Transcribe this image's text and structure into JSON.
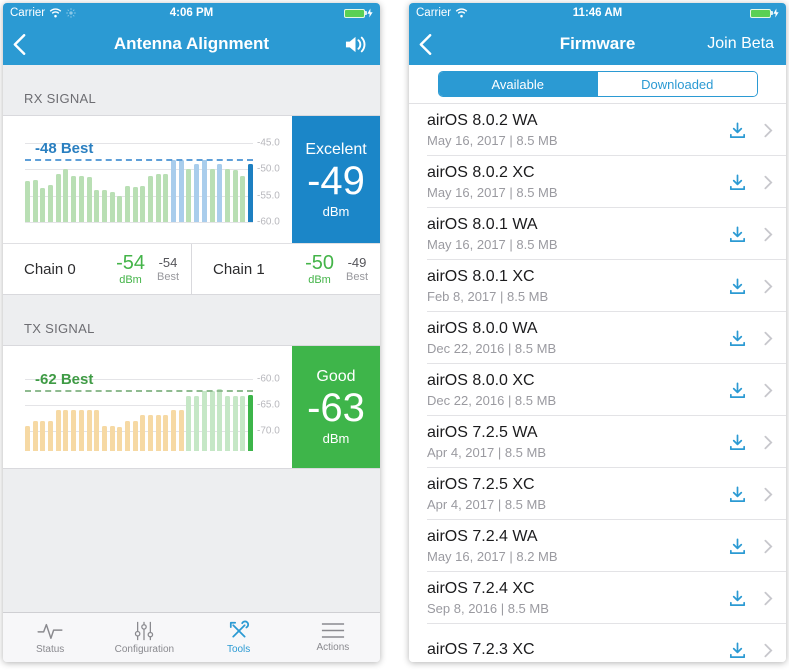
{
  "colors": {
    "app_blue": "#2b9ad3",
    "rx_box_blue": "#1b86c8",
    "tx_box_green": "#3eb54a",
    "chain_value_green": "#44b449"
  },
  "chart_data": [
    {
      "type": "bar",
      "title": "RX SIGNAL",
      "ylabel": "dBm",
      "ylim": [
        -60,
        -44.5
      ],
      "grid": true,
      "y_ticks": [
        {
          "value": -45,
          "label": "-45.0"
        },
        {
          "value": -50,
          "label": "-50.0"
        },
        {
          "value": -55,
          "label": "-55.0"
        },
        {
          "value": -60,
          "label": "-60.0"
        }
      ],
      "best_line": {
        "value": -48,
        "label": "-48 Best",
        "line_color": "#5e9fd8",
        "label_color": "#2a7fc0"
      },
      "current": {
        "quality": "Excelent",
        "value": -49,
        "unit": "dBm"
      },
      "palette": {
        "g": "#b9dfb4",
        "b": "#a9cdec",
        "c": "#1d7fc1"
      },
      "values": [
        -52.3,
        -52.0,
        -53.5,
        -53.0,
        -51.0,
        -50.0,
        -51.3,
        -51.3,
        -51.4,
        -54.0,
        -54.0,
        -54.3,
        -55.0,
        -53.2,
        -53.3,
        -53.2,
        -51.3,
        -51.0,
        -51.0,
        -48.2,
        -48.2,
        -50.0,
        -49.0,
        -48.2,
        -50.0,
        -49.0,
        -50.0,
        -50.2,
        -51.3,
        -49.0
      ],
      "bar_colors": [
        "g",
        "g",
        "g",
        "g",
        "g",
        "g",
        "g",
        "g",
        "g",
        "g",
        "g",
        "g",
        "g",
        "g",
        "g",
        "g",
        "g",
        "g",
        "g",
        "b",
        "b",
        "g",
        "b",
        "b",
        "g",
        "b",
        "g",
        "g",
        "g",
        "c"
      ]
    },
    {
      "type": "bar",
      "title": "TX SIGNAL",
      "ylabel": "dBm",
      "ylim": [
        -73.8,
        -58.5
      ],
      "grid": true,
      "y_ticks": [
        {
          "value": -60,
          "label": "-60.0"
        },
        {
          "value": -65,
          "label": "-65.0"
        },
        {
          "value": -70,
          "label": "-70.0"
        }
      ],
      "best_line": {
        "value": -62.2,
        "label": "-62 Best",
        "line_color": "#8fbb90",
        "label_color": "#3f9b45"
      },
      "current": {
        "quality": "Good",
        "value": -63,
        "unit": "dBm"
      },
      "palette": {
        "o": "#f6d9a4",
        "g": "#c5e7c6",
        "c": "#3cb549"
      },
      "values": [
        -69.0,
        -68.0,
        -68.0,
        -68.0,
        -66.0,
        -66.0,
        -66.0,
        -66.0,
        -66.0,
        -66.0,
        -69.0,
        -69.0,
        -69.2,
        -68.0,
        -68.0,
        -67.0,
        -67.0,
        -67.0,
        -67.0,
        -66.0,
        -66.0,
        -63.3,
        -63.3,
        -62.3,
        -62.3,
        -62.0,
        -63.3,
        -63.3,
        -63.3,
        -63.0
      ],
      "bar_colors": [
        "o",
        "o",
        "o",
        "o",
        "o",
        "o",
        "o",
        "o",
        "o",
        "o",
        "o",
        "o",
        "o",
        "o",
        "o",
        "o",
        "o",
        "o",
        "o",
        "o",
        "o",
        "g",
        "g",
        "g",
        "g",
        "g",
        "g",
        "g",
        "g",
        "c"
      ]
    }
  ],
  "left_screen": {
    "status_bar": {
      "carrier": "Carrier",
      "time": "4:06 PM"
    },
    "nav": {
      "title": "Antenna Alignment"
    },
    "rx": {
      "section_label": "RX SIGNAL",
      "status": {
        "quality": "Excelent",
        "value": "-49",
        "unit": "dBm"
      },
      "chains": [
        {
          "name": "Chain 0",
          "value": "-54",
          "unit": "dBm",
          "best": "-54",
          "best_label": "Best"
        },
        {
          "name": "Chain 1",
          "value": "-50",
          "unit": "dBm",
          "best": "-49",
          "best_label": "Best"
        }
      ]
    },
    "tx": {
      "section_label": "TX SIGNAL",
      "status": {
        "quality": "Good",
        "value": "-63",
        "unit": "dBm"
      }
    },
    "tab_bar": [
      {
        "label": "Status",
        "icon": "status-pulse-icon",
        "active": false
      },
      {
        "label": "Configuration",
        "icon": "configuration-sliders-icon",
        "active": false
      },
      {
        "label": "Tools",
        "icon": "tools-icon",
        "active": true
      },
      {
        "label": "Actions",
        "icon": "actions-lines-icon",
        "active": false
      }
    ]
  },
  "right_screen": {
    "status_bar": {
      "carrier": "Carrier",
      "time": "11:46 AM"
    },
    "nav": {
      "title": "Firmware",
      "right_button": "Join Beta"
    },
    "segments": [
      {
        "label": "Available",
        "selected": true
      },
      {
        "label": "Downloaded",
        "selected": false
      }
    ],
    "firmware": [
      {
        "title": "airOS 8.0.2 WA",
        "meta": "May 16, 2017 | 8.5 MB"
      },
      {
        "title": "airOS 8.0.2 XC",
        "meta": "May 16, 2017 | 8.5 MB"
      },
      {
        "title": "airOS 8.0.1 WA",
        "meta": "May 16, 2017 | 8.5 MB"
      },
      {
        "title": "airOS 8.0.1 XC",
        "meta": "Feb 8, 2017 | 8.5 MB"
      },
      {
        "title": "airOS 8.0.0 WA",
        "meta": "Dec 22, 2016 | 8.5 MB"
      },
      {
        "title": "airOS 8.0.0 XC",
        "meta": "Dec 22, 2016 | 8.5 MB"
      },
      {
        "title": "airOS 7.2.5 WA",
        "meta": "Apr 4, 2017 | 8.5 MB"
      },
      {
        "title": "airOS 7.2.5 XC",
        "meta": "Apr 4, 2017 | 8.5 MB"
      },
      {
        "title": "airOS 7.2.4 WA",
        "meta": "May 16, 2017 | 8.2 MB"
      },
      {
        "title": "airOS 7.2.4 XC",
        "meta": "Sep 8, 2016 | 8.5 MB"
      },
      {
        "title": "airOS 7.2.3 XC",
        "meta": ""
      }
    ]
  }
}
